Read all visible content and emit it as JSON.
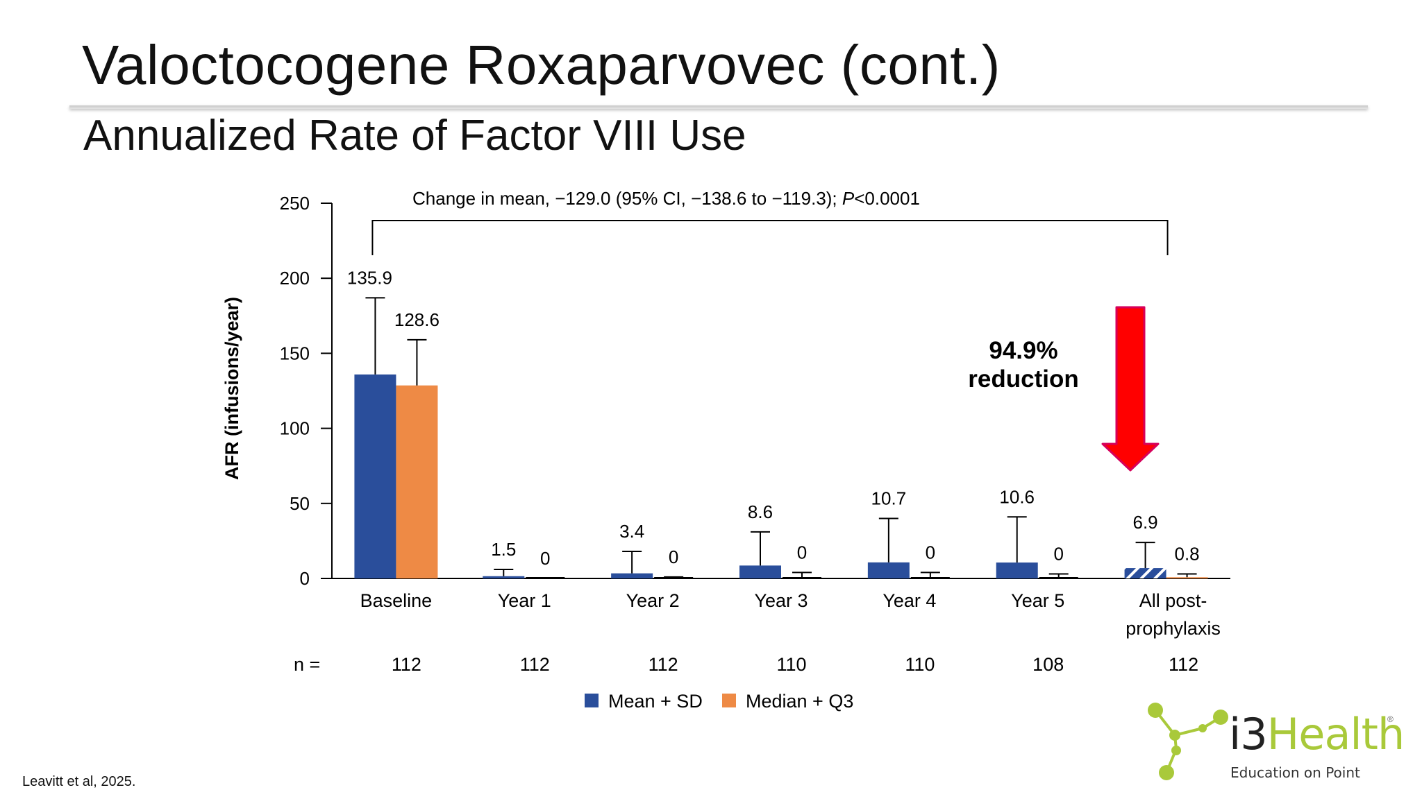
{
  "slide": {
    "title": "Valoctocogene Roxaparvovec (cont.)",
    "subtitle": "Annualized Rate of Factor VIII Use",
    "citation": "Leavitt et al, 2025."
  },
  "logo": {
    "brand_prefix": "i3",
    "brand_suffix": "Health",
    "registered": "®",
    "tagline": "Education on Point",
    "icon": "molecule-icon",
    "colors": {
      "node": "#a9c93a",
      "text": "#222222"
    }
  },
  "colors": {
    "mean": "#2a4e9b",
    "median": "#ee8a45",
    "arrow": "#ff0000",
    "axis": "#000000"
  },
  "chart_data": {
    "type": "bar",
    "ylabel": "AFR (infusions/year)",
    "ylim": [
      0,
      250
    ],
    "yticks": [
      0,
      50,
      100,
      150,
      200,
      250
    ],
    "categories": [
      "Baseline",
      "Year 1",
      "Year 2",
      "Year 3",
      "Year 4",
      "Year 5",
      "All post-prophylaxis"
    ],
    "category_lines": [
      [
        "Baseline"
      ],
      [
        "Year 1"
      ],
      [
        "Year 2"
      ],
      [
        "Year 3"
      ],
      [
        "Year 4"
      ],
      [
        "Year 5"
      ],
      [
        "All post-",
        "prophylaxis"
      ]
    ],
    "n_label": "n =",
    "n_values": [
      "112",
      "112",
      "112",
      "110",
      "110",
      "108",
      "112"
    ],
    "series": [
      {
        "name": "Mean + SD",
        "values": [
          135.9,
          1.5,
          3.4,
          8.6,
          10.7,
          10.6,
          6.9
        ],
        "labels": [
          "135.9",
          "1.5",
          "3.4",
          "8.6",
          "10.7",
          "10.6",
          "6.9"
        ],
        "error_top": [
          187,
          6,
          18,
          31,
          40,
          41,
          24
        ]
      },
      {
        "name": "Median + Q3",
        "values": [
          128.6,
          0,
          0,
          0,
          0,
          0,
          0.8
        ],
        "labels": [
          "128.6",
          "0",
          "0",
          "0",
          "0",
          "0",
          "0.8"
        ],
        "error_top": [
          159,
          0,
          1,
          4,
          4,
          3,
          3
        ]
      }
    ],
    "hatched_bar": {
      "series": "Mean + SD",
      "category": "All post-prophylaxis"
    },
    "comparison": {
      "text_main": "Change in mean, −129.0 (95% CI, −138.6 to −119.3); ",
      "text_p": "P",
      "text_tail": "<0.0001",
      "from": "Baseline",
      "to": "All post-prophylaxis"
    },
    "callout": {
      "line1": "94.9%",
      "line2": "reduction"
    },
    "legend": [
      "Mean + SD",
      "Median + Q3"
    ]
  }
}
